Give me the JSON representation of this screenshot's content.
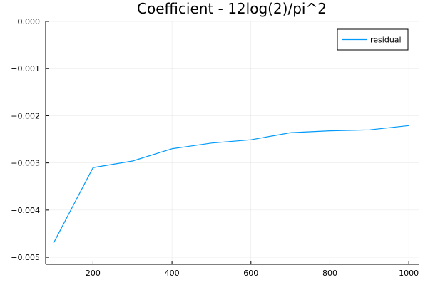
{
  "chart_data": {
    "type": "line",
    "title": "Coefficient -  12log(2)/pi^2",
    "xlabel": "",
    "ylabel": "",
    "xlim": [
      80,
      1025
    ],
    "ylim": [
      -0.00515,
      0.0
    ],
    "x_ticks": [
      200,
      400,
      600,
      800,
      1000
    ],
    "x_tick_labels": [
      "200",
      "400",
      "600",
      "800",
      "1000"
    ],
    "y_ticks": [
      0.0,
      -0.001,
      -0.002,
      -0.003,
      -0.004,
      -0.005
    ],
    "y_tick_labels": [
      "0.000",
      "−0.001",
      "−0.002",
      "−0.003",
      "−0.004",
      "−0.005"
    ],
    "grid": true,
    "legend_position": "top-right",
    "series": [
      {
        "name": "residual",
        "color": "#009AFA",
        "x": [
          100,
          200,
          300,
          400,
          500,
          600,
          700,
          800,
          900,
          1000
        ],
        "y": [
          -0.0047,
          -0.0031,
          -0.00296,
          -0.0027,
          -0.00258,
          -0.00251,
          -0.00236,
          -0.00232,
          -0.0023,
          -0.00221
        ]
      }
    ]
  }
}
